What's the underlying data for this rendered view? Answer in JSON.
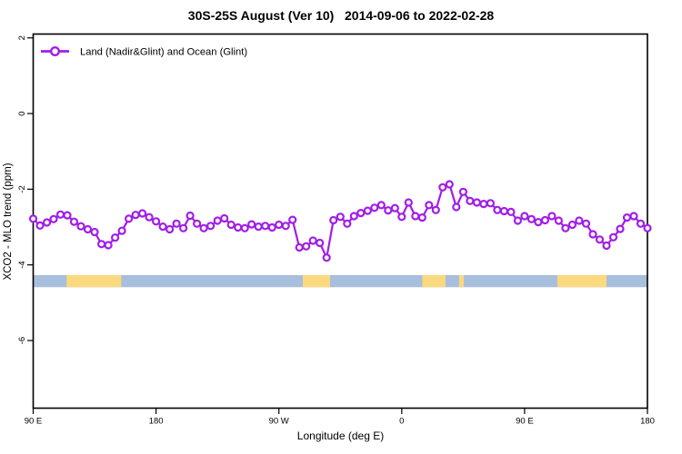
{
  "title": "30S-25S August (Ver 10)   2014-09-06 to 2022-02-28",
  "legend": {
    "label": "Land (Nadir&Glint) and Ocean (Glint)",
    "position": "top-left"
  },
  "chart_data": {
    "type": "line",
    "title": "30S-25S August (Ver 10)   2014-09-06 to 2022-02-28",
    "xlabel": "Longitude (deg E)",
    "ylabel": "XCO2 - MLO trend (ppm)",
    "xlim": [
      90,
      540
    ],
    "ylim": [
      -7.8,
      2.1
    ],
    "grid": false,
    "legend_position": "top-left",
    "x_ticks": [
      {
        "lon": 90,
        "label": "90 E"
      },
      {
        "lon": 180,
        "label": "180"
      },
      {
        "lon": 270,
        "label": "90 W"
      },
      {
        "lon": 360,
        "label": "0"
      },
      {
        "lon": 450,
        "label": "90 E"
      },
      {
        "lon": 540,
        "label": "180"
      }
    ],
    "y_ticks": [
      {
        "value": 2,
        "label": "2"
      },
      {
        "value": 0,
        "label": "0"
      },
      {
        "value": -2,
        "label": "-2"
      },
      {
        "value": -4,
        "label": "-4"
      },
      {
        "value": -6,
        "label": "-6"
      }
    ],
    "series": [
      {
        "name": "Land (Nadir&Glint) and Ocean (Glint)",
        "color": "#a11de8",
        "marker": "open-circle",
        "x": [
          90,
          95,
          100,
          105,
          110,
          115,
          120,
          125,
          130,
          135,
          140,
          145,
          150,
          155,
          160,
          165,
          170,
          175,
          180,
          185,
          190,
          195,
          200,
          205,
          210,
          215,
          220,
          225,
          230,
          235,
          240,
          245,
          250,
          255,
          260,
          265,
          270,
          275,
          280,
          285,
          290,
          295,
          300,
          305,
          310,
          315,
          320,
          325,
          330,
          335,
          340,
          345,
          350,
          355,
          360,
          365,
          370,
          375,
          380,
          385,
          390,
          395,
          400,
          405,
          410,
          415,
          420,
          425,
          430,
          435,
          440,
          445,
          450,
          455,
          460,
          465,
          470,
          475,
          480,
          485,
          490,
          495,
          500,
          505,
          510,
          515,
          520,
          525,
          530,
          535,
          540
        ],
        "values": [
          -2.78,
          -2.96,
          -2.88,
          -2.79,
          -2.67,
          -2.69,
          -2.86,
          -2.98,
          -3.06,
          -3.13,
          -3.45,
          -3.48,
          -3.28,
          -3.1,
          -2.78,
          -2.68,
          -2.64,
          -2.74,
          -2.85,
          -2.99,
          -3.06,
          -2.91,
          -3.03,
          -2.7,
          -2.91,
          -3.03,
          -2.97,
          -2.83,
          -2.77,
          -2.94,
          -3.01,
          -3.03,
          -2.93,
          -2.99,
          -2.97,
          -3.01,
          -2.94,
          -2.97,
          -2.81,
          -3.54,
          -3.51,
          -3.36,
          -3.42,
          -3.81,
          -2.82,
          -2.73,
          -2.91,
          -2.71,
          -2.63,
          -2.57,
          -2.49,
          -2.42,
          -2.56,
          -2.5,
          -2.73,
          -2.35,
          -2.71,
          -2.75,
          -2.42,
          -2.55,
          -1.95,
          -1.87,
          -2.47,
          -2.07,
          -2.31,
          -2.35,
          -2.39,
          -2.37,
          -2.55,
          -2.58,
          -2.6,
          -2.83,
          -2.71,
          -2.79,
          -2.87,
          -2.82,
          -2.71,
          -2.83,
          -3.03,
          -2.94,
          -2.83,
          -2.91,
          -3.19,
          -3.33,
          -3.49,
          -3.27,
          -3.05,
          -2.75,
          -2.71,
          -2.91,
          -3.03
        ]
      }
    ],
    "surface_band": {
      "description": "land/ocean strip along 30S-25S",
      "ppm_range": [
        -4.59,
        -4.27
      ],
      "ocean_color": "#a8bedd",
      "land_color": "#fbd97e",
      "land_segments_lon": [
        [
          114.5,
          154.5
        ],
        [
          287.5,
          307.5
        ],
        [
          375,
          392
        ],
        [
          402,
          405.5
        ],
        [
          474,
          510
        ]
      ]
    },
    "axis_color": "#000000",
    "background_color": "#ffffff"
  }
}
